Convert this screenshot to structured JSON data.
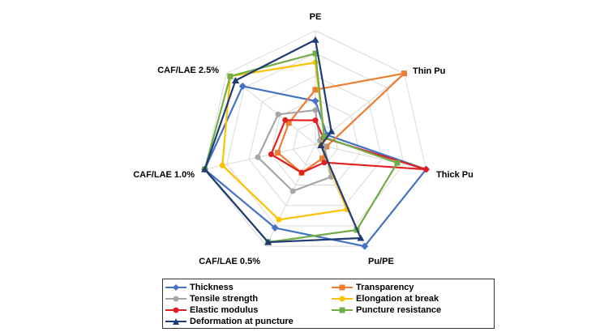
{
  "chart_data": {
    "type": "radar",
    "axes": [
      "PE",
      "Thin Pu",
      "Thick Pu",
      "Pu/PE",
      "CAF/LAE 0.5%",
      "CAF/LAE 1.0%",
      "CAF/LAE 2.5%"
    ],
    "range": [
      0,
      1
    ],
    "grid_levels": 5,
    "grid": true,
    "legend_position": "bottom",
    "series": [
      {
        "name": "Thickness",
        "color": "#4472C4",
        "marker": "diamond",
        "values": [
          0.38,
          0.13,
          1.0,
          1.0,
          0.82,
          1.0,
          0.82
        ]
      },
      {
        "name": "Transparency",
        "color": "#ED7D31",
        "marker": "square",
        "values": [
          0.48,
          1.0,
          0.1,
          0.14,
          0.28,
          0.34,
          0.3
        ]
      },
      {
        "name": "Tensile strength",
        "color": "#A5A5A5",
        "marker": "circle",
        "values": [
          0.3,
          0.05,
          0.08,
          0.32,
          0.46,
          0.52,
          0.42
        ]
      },
      {
        "name": "Elongation at break",
        "color": "#FFC000",
        "marker": "circle",
        "values": [
          0.72,
          0.1,
          0.05,
          0.64,
          0.74,
          0.84,
          0.96
        ]
      },
      {
        "name": "Elastic modulus",
        "color": "#E02020",
        "marker": "circle",
        "values": [
          0.21,
          0.09,
          1.0,
          0.18,
          0.28,
          0.4,
          0.34
        ]
      },
      {
        "name": "Puncture resistance",
        "color": "#70AD47",
        "marker": "square",
        "values": [
          0.8,
          0.1,
          0.74,
          0.84,
          0.96,
          1.0,
          0.96
        ]
      },
      {
        "name": "Deformation at puncture",
        "color": "#1F3C73",
        "marker": "triangle",
        "values": [
          0.92,
          0.18,
          0.05,
          0.92,
          0.96,
          1.0,
          0.9
        ]
      }
    ]
  }
}
